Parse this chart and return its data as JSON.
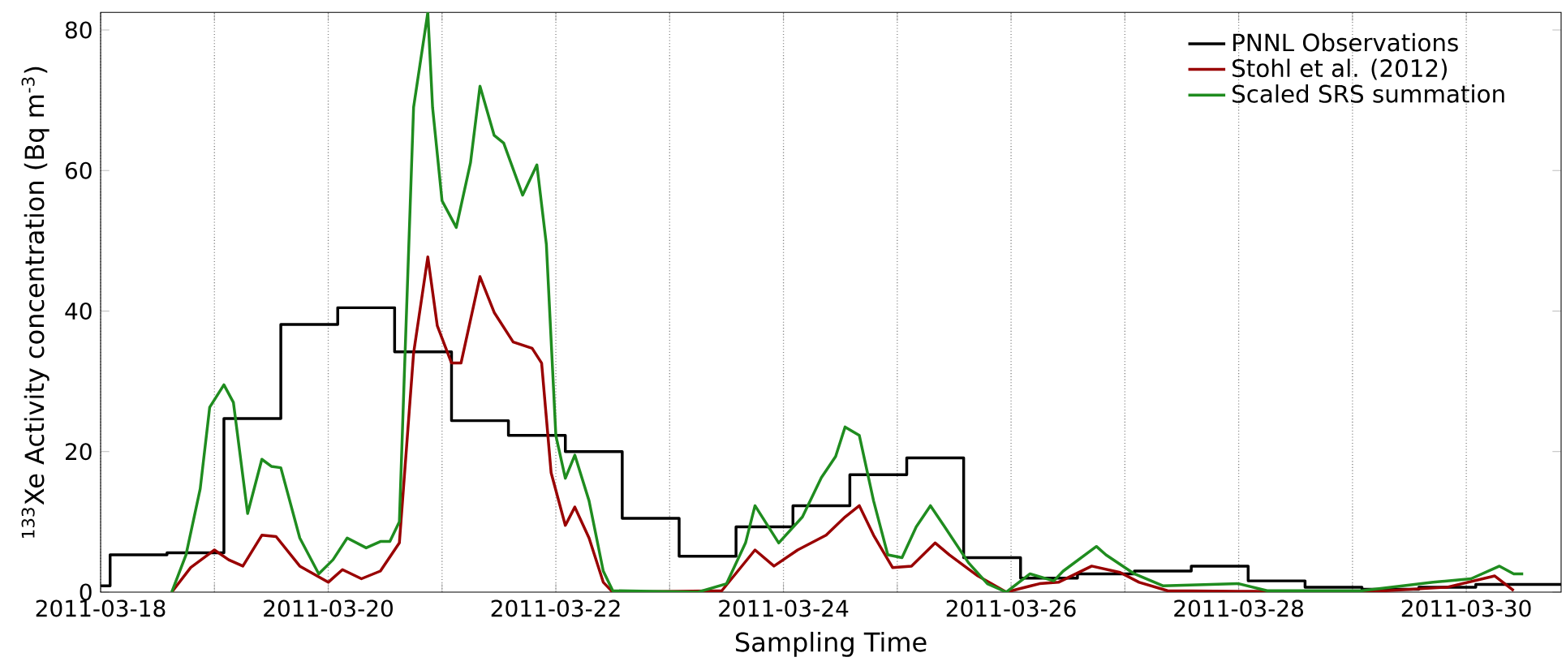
{
  "chart_data": {
    "type": "line",
    "xlabel": "Sampling Time",
    "ylabel": "$^{133}$Xe Activity concentration (Bq m$^{-3}$)",
    "xlim": [
      "2011-03-18T00:00",
      "2011-03-30T20:00"
    ],
    "ylim": [
      0,
      82.5
    ],
    "xticks": [
      "2011-03-18",
      {
        "value": "2011-03-19",
        "label": null
      },
      "2011-03-20",
      {
        "value": "2011-03-21",
        "label": null
      },
      "2011-03-22",
      {
        "value": "2011-03-23",
        "label": null
      },
      "2011-03-24",
      {
        "value": "2011-03-25",
        "label": null
      },
      "2011-03-26",
      {
        "value": "2011-03-27",
        "label": null
      },
      "2011-03-28",
      {
        "value": "2011-03-29",
        "label": null
      },
      "2011-03-30"
    ],
    "yticks": [
      0,
      20,
      40,
      60,
      80
    ],
    "grid": "x",
    "legend": "top right",
    "series": [
      {
        "name": "PNNL Observations",
        "type": "step",
        "color": "#000000",
        "x": [
          "2011-03-18T00:00",
          "2011-03-18T02:00",
          "2011-03-18T14:00",
          "2011-03-19T02:00",
          "2011-03-19T14:00",
          "2011-03-20T02:00",
          "2011-03-20T14:00",
          "2011-03-21T02:00",
          "2011-03-21T14:00",
          "2011-03-22T02:00",
          "2011-03-22T14:00",
          "2011-03-23T02:00",
          "2011-03-23T14:00",
          "2011-03-24T02:00",
          "2011-03-24T14:00",
          "2011-03-25T02:00",
          "2011-03-25T14:00",
          "2011-03-26T02:00",
          "2011-03-26T14:00",
          "2011-03-27T02:00",
          "2011-03-27T14:00",
          "2011-03-28T02:00",
          "2011-03-28T14:00",
          "2011-03-29T02:00",
          "2011-03-29T14:00",
          "2011-03-30T02:00",
          "2011-03-30T14:00",
          "2011-03-30T20:00"
        ],
        "values": [
          0.9,
          5.3,
          5.6,
          24.7,
          38.1,
          40.5,
          34.2,
          24.4,
          22.3,
          20.0,
          10.5,
          5.1,
          9.3,
          12.3,
          16.7,
          19.1,
          4.9,
          2.0,
          2.6,
          3.0,
          3.7,
          1.6,
          0.7,
          0.4,
          0.7,
          1.1,
          1.1,
          1.1
        ]
      },
      {
        "name": "Stohl et al. (2012)",
        "color": "#990000",
        "x": [
          "2011-03-18T15:00",
          "2011-03-18T19:00",
          "2011-03-19T00:00",
          "2011-03-19T03:00",
          "2011-03-19T06:00",
          "2011-03-19T10:00",
          "2011-03-19T13:00",
          "2011-03-19T18:00",
          "2011-03-20T00:00",
          "2011-03-20T03:00",
          "2011-03-20T07:00",
          "2011-03-20T11:00",
          "2011-03-20T15:00",
          "2011-03-20T18:00",
          "2011-03-20T21:00",
          "2011-03-20T23:00",
          "2011-03-21T02:00",
          "2011-03-21T04:00",
          "2011-03-21T08:00",
          "2011-03-21T11:00",
          "2011-03-21T15:00",
          "2011-03-21T19:00",
          "2011-03-21T21:00",
          "2011-03-21T23:00",
          "2011-03-22T02:00",
          "2011-03-22T04:00",
          "2011-03-22T07:00",
          "2011-03-22T10:00",
          "2011-03-22T12:00",
          "2011-03-23T11:00",
          "2011-03-23T18:00",
          "2011-03-23T22:00",
          "2011-03-24T03:00",
          "2011-03-24T09:00",
          "2011-03-24T13:00",
          "2011-03-24T16:00",
          "2011-03-24T19:00",
          "2011-03-24T23:00",
          "2011-03-25T03:00",
          "2011-03-25T08:00",
          "2011-03-25T11:00",
          "2011-03-25T17:00",
          "2011-03-25T23:00",
          "2011-03-26T06:00",
          "2011-03-26T10:00",
          "2011-03-26T17:00",
          "2011-03-26T23:00",
          "2011-03-27T03:00",
          "2011-03-27T09:00",
          "2011-03-28T03:00",
          "2011-03-29T02:00",
          "2011-03-29T20:00",
          "2011-03-30T06:00",
          "2011-03-30T10:00"
        ],
        "values": [
          0,
          3.5,
          6,
          4.6,
          3.7,
          8.1,
          7.9,
          3.7,
          1.4,
          3.2,
          1.9,
          3,
          7,
          34,
          47.7,
          37.9,
          32.6,
          32.6,
          44.9,
          39.8,
          35.6,
          34.7,
          32.6,
          17,
          9.5,
          12.1,
          7.7,
          1.4,
          0,
          0.2,
          6,
          3.7,
          6,
          8.1,
          10.7,
          12.3,
          8.1,
          3.5,
          3.7,
          7,
          5.3,
          2.3,
          0,
          1.2,
          1.4,
          3.7,
          2.8,
          1.4,
          0.2,
          0.1,
          0,
          0.7,
          2.3,
          0.2
        ]
      },
      {
        "name": "Scaled SRS summation",
        "color": "#1f8c1f",
        "x": [
          "2011-03-18T15:00",
          "2011-03-18T18:00",
          "2011-03-18T21:00",
          "2011-03-18T23:00",
          "2011-03-19T02:00",
          "2011-03-19T04:00",
          "2011-03-19T07:00",
          "2011-03-19T10:00",
          "2011-03-19T12:00",
          "2011-03-19T14:00",
          "2011-03-19T18:00",
          "2011-03-19T22:00",
          "2011-03-20T01:00",
          "2011-03-20T04:00",
          "2011-03-20T08:00",
          "2011-03-20T11:00",
          "2011-03-20T13:00",
          "2011-03-20T15:00",
          "2011-03-20T16:00",
          "2011-03-20T18:00",
          "2011-03-20T21:00",
          "2011-03-20T22:00",
          "2011-03-21T00:00",
          "2011-03-21T03:00",
          "2011-03-21T06:00",
          "2011-03-21T08:00",
          "2011-03-21T11:00",
          "2011-03-21T13:00",
          "2011-03-21T17:00",
          "2011-03-21T20:00",
          "2011-03-21T22:00",
          "2011-03-22T00:00",
          "2011-03-22T02:00",
          "2011-03-22T04:00",
          "2011-03-22T07:00",
          "2011-03-22T10:00",
          "2011-03-22T12:00",
          "2011-03-23T06:00",
          "2011-03-23T12:00",
          "2011-03-23T16:00",
          "2011-03-23T18:00",
          "2011-03-23T23:00",
          "2011-03-24T04:00",
          "2011-03-24T08:00",
          "2011-03-24T11:00",
          "2011-03-24T13:00",
          "2011-03-24T16:00",
          "2011-03-24T19:00",
          "2011-03-24T22:00",
          "2011-03-25T01:00",
          "2011-03-25T04:00",
          "2011-03-25T07:00",
          "2011-03-25T10:00",
          "2011-03-25T15:00",
          "2011-03-25T19:00",
          "2011-03-25T23:00",
          "2011-03-26T04:00",
          "2011-03-26T09:00",
          "2011-03-26T11:00",
          "2011-03-26T18:00",
          "2011-03-26T20:00",
          "2011-03-27T02:00",
          "2011-03-27T08:00",
          "2011-03-28T00:00",
          "2011-03-28T06:00",
          "2011-03-29T02:00",
          "2011-03-29T17:00",
          "2011-03-30T01:00",
          "2011-03-30T07:00",
          "2011-03-30T10:00",
          "2011-03-30T12:00"
        ],
        "values": [
          0,
          5.3,
          14.7,
          26.3,
          29.5,
          27,
          11.2,
          18.9,
          17.9,
          17.7,
          7.7,
          2.6,
          4.6,
          7.7,
          6.3,
          7.2,
          7.2,
          10,
          30,
          69,
          82.5,
          69,
          55.7,
          51.9,
          61.1,
          72,
          65,
          63.9,
          56.5,
          60.8,
          49.5,
          22.3,
          16.2,
          19.5,
          13,
          3,
          0.2,
          0,
          1.2,
          7,
          12.3,
          7,
          10.7,
          16.3,
          19.3,
          23.5,
          22.3,
          13,
          5.3,
          4.9,
          9.3,
          12.3,
          9.3,
          4.2,
          1.2,
          0,
          2.6,
          1.6,
          3,
          6.5,
          5.3,
          2.6,
          0.9,
          1.2,
          0.2,
          0.2,
          1.4,
          1.9,
          3.7,
          2.6,
          2.6
        ]
      }
    ]
  }
}
